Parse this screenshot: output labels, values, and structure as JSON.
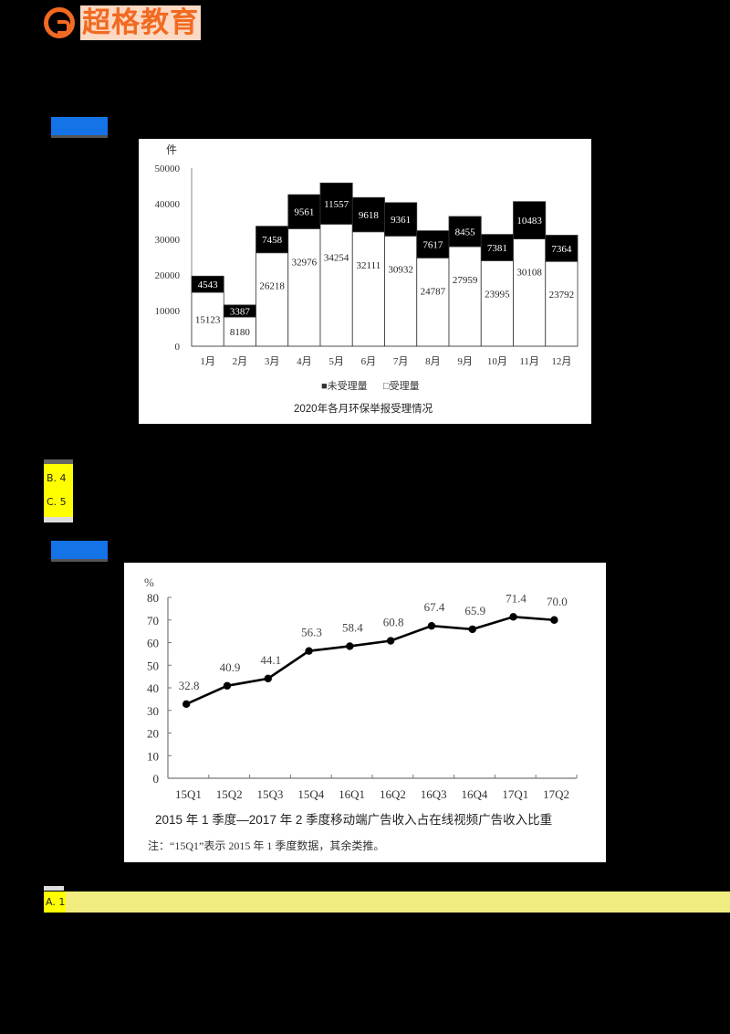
{
  "header": {
    "logo_text": "超格教育",
    "brand_color": "#f26a21"
  },
  "section1": {
    "tag_color": "#1473e6",
    "options": [
      {
        "label": "B. 4"
      },
      {
        "label": "C. 5"
      }
    ]
  },
  "section2": {
    "tag_color": "#1473e6",
    "answer_option": "A. 1",
    "answer_highlight_color": "#f0ec80"
  },
  "chart_data": [
    {
      "type": "bar",
      "stacked": true,
      "title": "2020年各月环保举报受理情况",
      "ylabel": "件",
      "xlabel": "",
      "ylim": [
        0,
        50000
      ],
      "yticks": [
        0,
        10000,
        20000,
        30000,
        40000,
        50000
      ],
      "categories": [
        "1月",
        "2月",
        "3月",
        "4月",
        "5月",
        "6月",
        "7月",
        "8月",
        "9月",
        "10月",
        "11月",
        "12月"
      ],
      "series": [
        {
          "name": "受理量",
          "color": "#ffffff",
          "values": [
            15123,
            8180,
            26218,
            32976,
            34254,
            32111,
            30932,
            24787,
            27959,
            23995,
            30108,
            23792
          ]
        },
        {
          "name": "未受理量",
          "color": "#000000",
          "values": [
            4543,
            3387,
            7458,
            9561,
            11557,
            9618,
            9361,
            7617,
            8455,
            7381,
            10483,
            7364
          ]
        }
      ],
      "legend": [
        "■未受理量",
        "□受理量"
      ],
      "legend_position": "bottom",
      "grid": false
    },
    {
      "type": "line",
      "title": "2015 年 1 季度—2017 年 2 季度移动端广告收入占在线视频广告收入比重",
      "note": "注：“15Q1”表示 2015 年 1 季度数据，其余类推。",
      "ylabel": "%",
      "xlabel": "",
      "ylim": [
        0,
        80
      ],
      "yticks": [
        0,
        10,
        20,
        30,
        40,
        50,
        60,
        70,
        80
      ],
      "categories": [
        "15Q1",
        "15Q2",
        "15Q3",
        "15Q4",
        "16Q1",
        "16Q2",
        "16Q3",
        "16Q4",
        "17Q1",
        "17Q2"
      ],
      "series": [
        {
          "name": "移动端广告收入占比",
          "values": [
            32.8,
            40.9,
            44.1,
            56.3,
            58.4,
            60.8,
            67.4,
            65.9,
            71.4,
            70.0
          ]
        }
      ],
      "grid": false
    }
  ]
}
